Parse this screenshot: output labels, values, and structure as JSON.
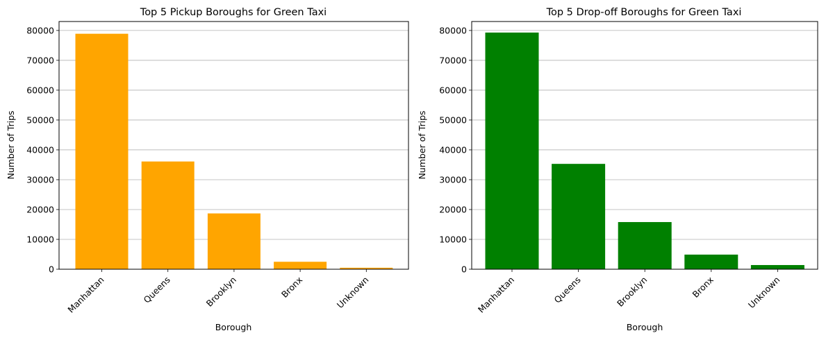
{
  "chart_data": [
    {
      "type": "bar",
      "title": "Top 5 Pickup Boroughs for Green Taxi",
      "xlabel": "Borough",
      "ylabel": "Number of Trips",
      "categories": [
        "Manhattan",
        "Queens",
        "Brooklyn",
        "Bronx",
        "Unknown"
      ],
      "values": [
        78900,
        36100,
        18700,
        2500,
        500
      ],
      "ylim": [
        0,
        83000
      ],
      "yticks": [
        0,
        10000,
        20000,
        30000,
        40000,
        50000,
        60000,
        70000,
        80000
      ],
      "grid": "y",
      "bar_color": "#FFA500"
    },
    {
      "type": "bar",
      "title": "Top 5 Drop-off Boroughs for Green Taxi",
      "xlabel": "Borough",
      "ylabel": "Number of Trips",
      "categories": [
        "Manhattan",
        "Queens",
        "Brooklyn",
        "Bronx",
        "Unknown"
      ],
      "values": [
        79300,
        35300,
        15800,
        4900,
        1400
      ],
      "ylim": [
        0,
        83000
      ],
      "yticks": [
        0,
        10000,
        20000,
        30000,
        40000,
        50000,
        60000,
        70000,
        80000
      ],
      "grid": "y",
      "bar_color": "#008000"
    }
  ]
}
